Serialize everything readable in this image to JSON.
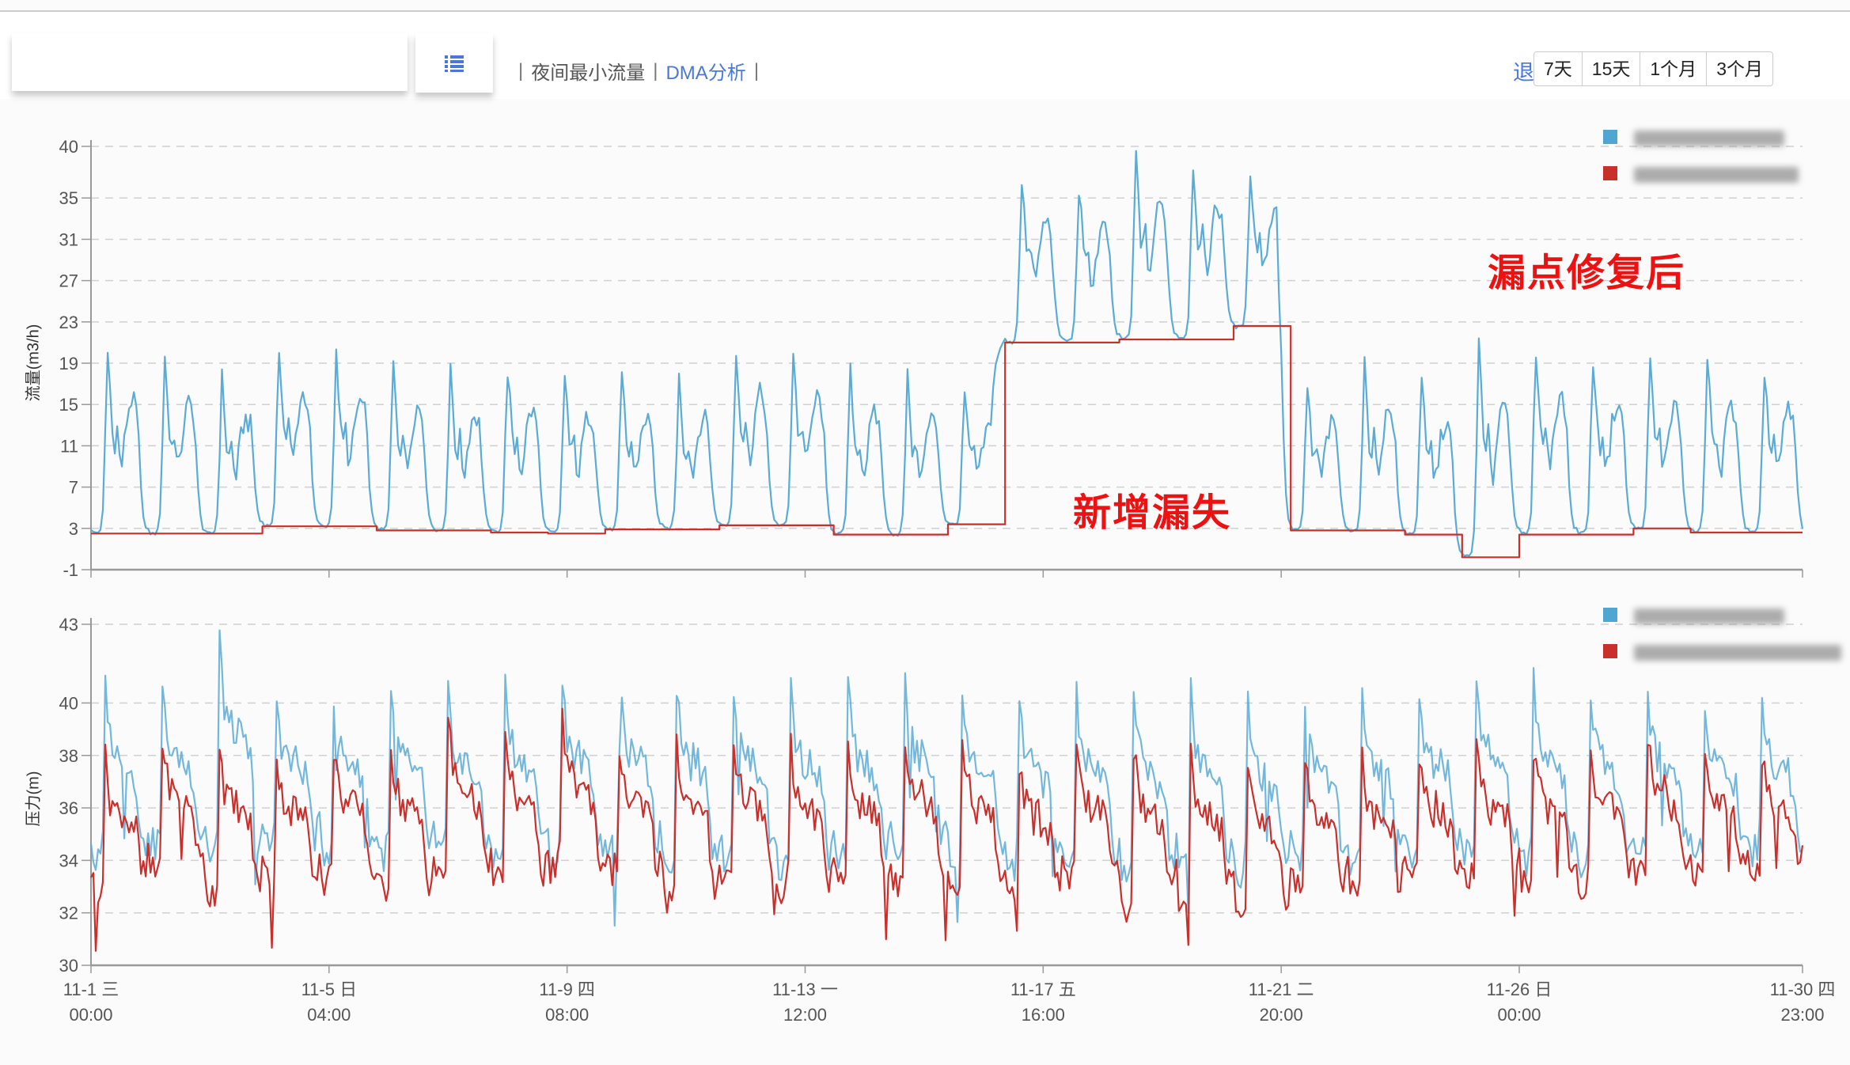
{
  "toolbar": {
    "menu_icon": "list-icon",
    "nav": [
      {
        "label": "夜间最小流量",
        "active": false
      },
      {
        "label": "DMA分析",
        "active": true
      }
    ],
    "back_label": "退",
    "range_buttons": [
      "7天",
      "15天",
      "1个月",
      "3个月"
    ]
  },
  "colors": {
    "blue": "#5aabd6",
    "red": "#c9302c",
    "accent": "#4a78d8",
    "annotation": "#ee1111"
  },
  "annotations": {
    "after_repair": "漏点修复后",
    "new_leak": "新增漏失"
  },
  "chart_data": [
    {
      "type": "line",
      "ylabel": "流量(m3/h)",
      "ylim": [
        -1,
        40
      ],
      "yticks": [
        -1,
        3,
        7,
        11,
        15,
        19,
        23,
        27,
        31,
        35,
        40
      ],
      "grid": true,
      "legend_placement": "top-right",
      "x_range": [
        "11-1 00:00",
        "11-30 23:00"
      ],
      "x_resolution": "hourly",
      "series": [
        {
          "color": "#5aabd6",
          "daily_night_min": [
            2.6,
            2.5,
            2.5,
            3.3,
            3.2,
            2.9,
            2.8,
            2.7,
            2.6,
            2.9,
            3.0,
            3.3,
            3.3,
            2.5,
            2.4,
            3.4,
            21,
            21.2,
            21.4,
            21.5,
            22.5,
            2.9,
            2.8,
            2.5,
            0.3,
            2.5,
            2.6,
            3.0,
            2.7,
            2.6
          ],
          "daily_peak": [
            20,
            19.5,
            17.5,
            20.5,
            19.5,
            19,
            18,
            18.5,
            18,
            17.5,
            17.5,
            20.5,
            20,
            18,
            17.5,
            16,
            37,
            36,
            39,
            38.5,
            38,
            16.5,
            18.5,
            17,
            20.5,
            20.5,
            19.5,
            19,
            19,
            18.5
          ]
        },
        {
          "color": "#c9302c",
          "step": true,
          "daily_mnf": [
            2.5,
            2.5,
            2.5,
            3.2,
            3.2,
            2.8,
            2.8,
            2.6,
            2.5,
            2.9,
            2.9,
            3.3,
            3.3,
            2.4,
            2.4,
            3.4,
            21,
            21,
            21.3,
            21.3,
            22.6,
            2.8,
            2.8,
            2.4,
            0.2,
            2.4,
            2.4,
            3.0,
            2.6,
            2.6
          ]
        }
      ]
    },
    {
      "type": "line",
      "ylabel": "压力(m)",
      "ylim": [
        30,
        43
      ],
      "yticks": [
        30,
        32,
        34,
        36,
        38,
        40,
        43
      ],
      "grid": true,
      "legend_placement": "top-right",
      "x_range": [
        "11-1 00:00",
        "11-30 23:00"
      ],
      "x_resolution": "hourly",
      "series": [
        {
          "color": "#5aabd6",
          "daily_high": [
            40.8,
            40.3,
            42.3,
            40.2,
            40.3,
            40.3,
            40.2,
            40.6,
            40.8,
            40.5,
            40.8,
            40.6,
            40.7,
            40.5,
            40.6,
            40.2,
            40.4,
            40.2,
            40.3,
            40.5,
            40.2,
            40,
            40.2,
            40.4,
            40.8,
            40.8,
            40.6,
            40.3,
            40.2,
            40
          ],
          "daily_low": [
            33.9,
            34.6,
            34.2,
            34.5,
            34.3,
            34.2,
            34.2,
            34,
            34,
            34.3,
            33.8,
            34.2,
            33.6,
            33.8,
            34.3,
            34,
            33.6,
            33.8,
            33.5,
            33.7,
            33.5,
            34,
            33.8,
            34.3,
            34.2,
            34,
            33.6,
            34.3,
            34.2,
            34.4
          ]
        },
        {
          "color": "#c9302c",
          "daily_high": [
            37.8,
            38.6,
            38.5,
            37.8,
            38.3,
            38.4,
            39.3,
            38.5,
            39.5,
            38,
            38.6,
            38.6,
            38.2,
            38.3,
            38.8,
            38.4,
            37.8,
            38.3,
            38.4,
            38.2,
            37.8,
            37.7,
            37.8,
            38,
            38,
            38.3,
            38.3,
            38.8,
            38,
            37.8
          ],
          "daily_low": [
            33,
            33.5,
            32.7,
            33.4,
            33.2,
            32.8,
            33.3,
            33.2,
            33.5,
            33.6,
            32.6,
            33.3,
            32.9,
            33,
            33.2,
            33,
            32.8,
            33,
            32.2,
            32.6,
            32.2,
            33,
            32.8,
            33.2,
            33.5,
            33.2,
            33,
            33.5,
            33.4,
            33.6
          ]
        }
      ]
    }
  ],
  "xaxis": {
    "ticks": [
      {
        "hour": 0,
        "date": "11-1 三",
        "time": "00:00"
      },
      {
        "hour": 100,
        "date": "11-5 日",
        "time": "04:00"
      },
      {
        "hour": 200,
        "date": "11-9 四",
        "time": "08:00"
      },
      {
        "hour": 300,
        "date": "11-13 一",
        "time": "12:00"
      },
      {
        "hour": 400,
        "date": "11-17 五",
        "time": "16:00"
      },
      {
        "hour": 500,
        "date": "11-21 二",
        "time": "20:00"
      },
      {
        "hour": 600,
        "date": "11-26 日",
        "time": "00:00"
      },
      {
        "hour": 719,
        "date": "11-30 四",
        "time": "23:00"
      }
    ]
  }
}
